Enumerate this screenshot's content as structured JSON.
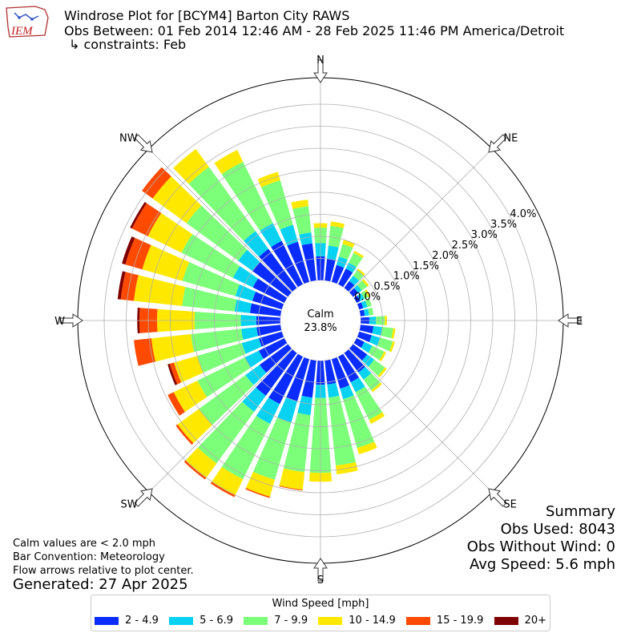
{
  "header": {
    "title": "Windrose Plot for [BCYM4] Barton City RAWS",
    "obs_between": "Obs Between: 01 Feb 2014 12:46 AM - 28 Feb 2025 11:46 PM America/Detroit",
    "constraints": "↳ constraints: Feb",
    "logo_text": "IEM"
  },
  "notes": {
    "calm_def": "Calm values are < 2.0 mph",
    "bar_convention": "Bar Convention: Meteorology",
    "flow_arrows": "Flow arrows relative to plot center.",
    "generated": "Generated: 27 Apr 2025"
  },
  "summary": {
    "heading": "Summary",
    "obs_used": "Obs Used: 8043",
    "obs_without_wind": "Obs Without Wind: 0",
    "avg_speed": "Avg Speed: 5.6 mph"
  },
  "chart_data": {
    "type": "windrose",
    "calm_label": "Calm",
    "calm_value": "23.8%",
    "calm_percent": 23.8,
    "rmax_percent": 4.6,
    "radial_ticks": [
      0.0,
      0.5,
      1.0,
      1.5,
      2.0,
      2.5,
      3.0,
      3.5,
      4.0
    ],
    "radial_tick_labels": [
      "0.0%",
      "0.5%",
      "1.0%",
      "1.5%",
      "2.0%",
      "2.5%",
      "3.0%",
      "3.5%",
      "4.0%"
    ],
    "compass_labels": [
      "N",
      "NE",
      "E",
      "SE",
      "S",
      "SW",
      "W",
      "NW"
    ],
    "legend_title": "Wind Speed [mph]",
    "speed_bins": [
      {
        "label": "2 - 4.9",
        "color": "#0a2cff"
      },
      {
        "label": "5 - 6.9",
        "color": "#08d2f2"
      },
      {
        "label": "7 - 9.9",
        "color": "#7cff79"
      },
      {
        "label": "10 - 14.9",
        "color": "#ffe800"
      },
      {
        "label": "15 - 19.9",
        "color": "#ff4a00"
      },
      {
        "label": "20+",
        "color": "#7f0000"
      }
    ],
    "directions_deg": [
      0,
      10,
      20,
      30,
      40,
      50,
      60,
      70,
      80,
      90,
      100,
      110,
      120,
      130,
      140,
      150,
      160,
      170,
      180,
      190,
      200,
      210,
      220,
      230,
      240,
      250,
      260,
      270,
      280,
      290,
      300,
      310,
      320,
      330,
      340,
      350
    ],
    "cumulative_percent": [
      [
        0.55,
        0.85,
        1.2,
        1.3,
        1.3,
        1.3
      ],
      [
        0.5,
        0.8,
        1.25,
        1.35,
        1.35,
        1.35
      ],
      [
        0.4,
        0.6,
        0.9,
        1.0,
        1.0,
        1.0
      ],
      [
        0.4,
        0.55,
        0.8,
        0.85,
        0.85,
        0.85
      ],
      [
        0.2,
        0.35,
        0.5,
        0.55,
        0.55,
        0.55
      ],
      [
        0.15,
        0.25,
        0.4,
        0.45,
        0.45,
        0.45
      ],
      [
        0.1,
        0.2,
        0.3,
        0.35,
        0.35,
        0.35
      ],
      [
        0.1,
        0.2,
        0.3,
        0.3,
        0.3,
        0.3
      ],
      [
        0.1,
        0.2,
        0.3,
        0.3,
        0.3,
        0.3
      ],
      [
        0.2,
        0.35,
        0.55,
        0.6,
        0.6,
        0.6
      ],
      [
        0.3,
        0.5,
        0.75,
        0.8,
        0.8,
        0.8
      ],
      [
        0.3,
        0.5,
        0.8,
        0.85,
        0.85,
        0.85
      ],
      [
        0.2,
        0.4,
        0.7,
        0.75,
        0.75,
        0.75
      ],
      [
        0.4,
        0.6,
        0.9,
        0.95,
        0.95,
        0.95
      ],
      [
        0.55,
        0.75,
        1.05,
        1.1,
        1.1,
        1.1
      ],
      [
        0.65,
        0.9,
        1.6,
        1.7,
        1.7,
        1.7
      ],
      [
        0.7,
        0.95,
        2.1,
        2.25,
        2.25,
        2.25
      ],
      [
        0.55,
        0.85,
        2.4,
        2.6,
        2.6,
        2.6
      ],
      [
        0.55,
        0.85,
        2.55,
        2.75,
        2.75,
        2.75
      ],
      [
        0.85,
        1.25,
        2.55,
        2.95,
        2.97,
        2.97
      ],
      [
        1.0,
        1.5,
        2.85,
        3.25,
        3.28,
        3.28
      ],
      [
        1.2,
        1.7,
        3.1,
        3.5,
        3.55,
        3.55
      ],
      [
        1.2,
        1.65,
        3.1,
        3.5,
        3.55,
        3.55
      ],
      [
        0.8,
        1.2,
        2.5,
        3.1,
        3.15,
        3.15
      ],
      [
        0.65,
        1.0,
        2.2,
        2.8,
        2.95,
        2.95
      ],
      [
        0.55,
        0.95,
        2.0,
        2.55,
        2.65,
        2.7
      ],
      [
        0.55,
        0.9,
        2.05,
        2.95,
        3.35,
        3.35
      ],
      [
        0.55,
        0.9,
        1.95,
        2.8,
        3.2,
        3.25
      ],
      [
        0.7,
        1.05,
        2.25,
        3.35,
        3.65,
        3.72
      ],
      [
        0.7,
        1.1,
        2.35,
        3.3,
        3.7,
        3.78
      ],
      [
        0.8,
        1.3,
        2.6,
        3.45,
        3.85,
        3.9
      ],
      [
        1.0,
        1.4,
        2.85,
        3.8,
        4.1,
        4.1
      ],
      [
        1.1,
        1.6,
        3.4,
        3.9,
        3.9,
        3.9
      ],
      [
        1.1,
        1.55,
        3.1,
        3.4,
        3.4,
        3.4
      ],
      [
        0.95,
        1.35,
        2.4,
        2.6,
        2.6,
        2.6
      ],
      [
        0.85,
        1.1,
        1.7,
        1.85,
        1.85,
        1.85
      ]
    ]
  }
}
